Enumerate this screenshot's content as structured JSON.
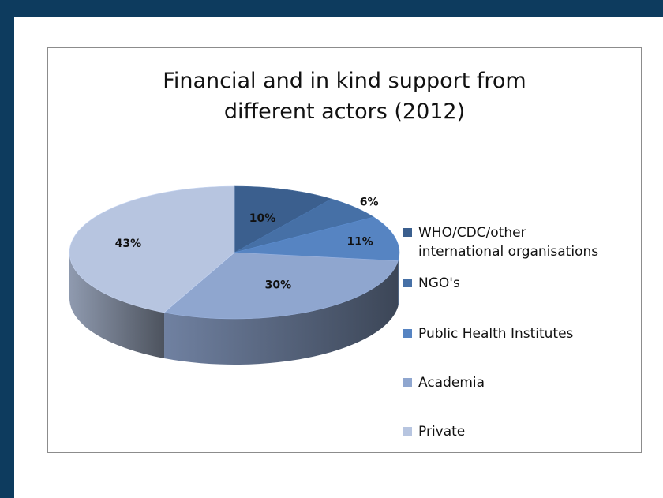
{
  "chart_data": {
    "type": "pie",
    "title_lines": [
      "Financial and in kind support from",
      "different actors (2012)"
    ],
    "slices": [
      {
        "name": "WHO/CDC/other international organisations",
        "legend_lines": [
          "WHO/CDC/other",
          "international organisations"
        ],
        "value": 10,
        "label": "10%",
        "color": "#3b5f8e"
      },
      {
        "name": "NGO's",
        "legend_lines": [
          "NGO's"
        ],
        "value": 6,
        "label": "6%",
        "color": "#4670a6"
      },
      {
        "name": "Public Health Institutes",
        "legend_lines": [
          "Public Health Institutes"
        ],
        "value": 11,
        "label": "11%",
        "color": "#5684c2"
      },
      {
        "name": "Academia",
        "legend_lines": [
          "Academia"
        ],
        "value": 30,
        "label": "30%",
        "color": "#8fa6cf"
      },
      {
        "name": "Private",
        "legend_lines": [
          "Private"
        ],
        "value": 43,
        "label": "43%",
        "color": "#b7c5e0"
      }
    ],
    "legend_position": "right",
    "style": "3d-pie"
  }
}
